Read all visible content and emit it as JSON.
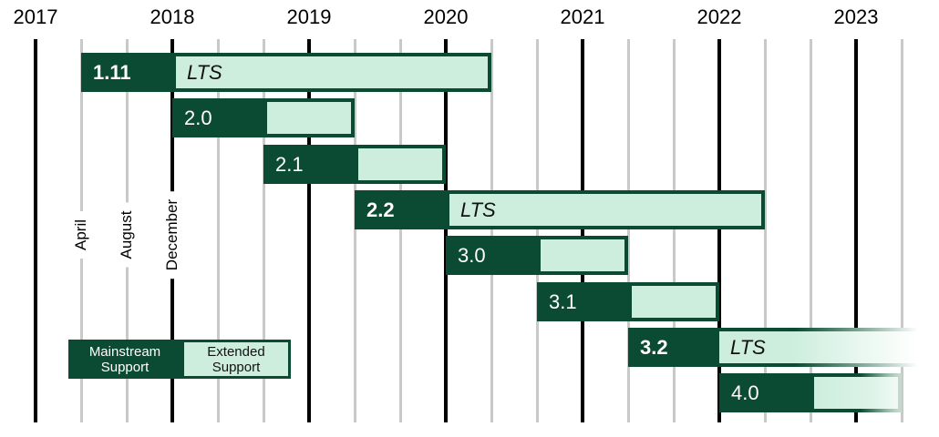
{
  "colors": {
    "mainstream": "#0c4b33",
    "extended": "#cdeedd",
    "gridline_major": "#000000",
    "gridline_minor": "#c9c9c9",
    "background": "#ffffff",
    "text": "#000000"
  },
  "chart_data": {
    "type": "gantt",
    "x_axis": {
      "year_labels": [
        "2017",
        "2018",
        "2019",
        "2020",
        "2021",
        "2022",
        "2023"
      ],
      "month_tick_labels": [
        "April",
        "August",
        "December"
      ],
      "minor_tick_interval_months": 4,
      "major_ticks_at": "December (year boundary)",
      "range_start": "2016-12",
      "range_end": "2023-05"
    },
    "legend": {
      "mainstream_lines": [
        "Mainstream",
        "Support"
      ],
      "extended_lines": [
        "Extended",
        "Support"
      ]
    },
    "lts_text": "LTS",
    "releases": [
      {
        "version": "1.11",
        "lts": true,
        "start": "2017-04",
        "mainstream_end": "2017-12",
        "extended_end": "2020-04",
        "fade": "none"
      },
      {
        "version": "2.0",
        "lts": false,
        "start": "2017-12",
        "mainstream_end": "2018-08",
        "extended_end": "2019-04",
        "fade": "none"
      },
      {
        "version": "2.1",
        "lts": false,
        "start": "2018-08",
        "mainstream_end": "2019-04",
        "extended_end": "2019-12",
        "fade": "none"
      },
      {
        "version": "2.2",
        "lts": true,
        "start": "2019-04",
        "mainstream_end": "2019-12",
        "extended_end": "2022-04",
        "fade": "none"
      },
      {
        "version": "3.0",
        "lts": false,
        "start": "2019-12",
        "mainstream_end": "2020-08",
        "extended_end": "2021-04",
        "fade": "none"
      },
      {
        "version": "3.1",
        "lts": false,
        "start": "2020-08",
        "mainstream_end": "2021-04",
        "extended_end": "2021-12",
        "fade": "none"
      },
      {
        "version": "3.2",
        "lts": true,
        "start": "2021-04",
        "mainstream_end": "2021-12",
        "extended_end": null,
        "fade": "beyond-right-edge"
      },
      {
        "version": "4.0",
        "lts": false,
        "start": "2021-12",
        "mainstream_end": "2022-08",
        "extended_end": "2023-04",
        "fade": "right-edge-soft"
      }
    ]
  }
}
